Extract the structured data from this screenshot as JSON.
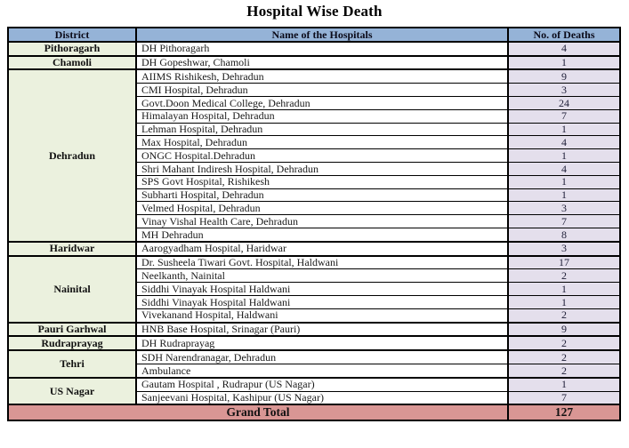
{
  "title": "Hospital Wise Death",
  "colors": {
    "header_bg": "#95B3D7",
    "district_bg": "#EBF1DE",
    "deaths_bg": "#E4DFEC",
    "total_bg": "#D99694",
    "border": "#000000"
  },
  "table": {
    "columns": [
      "District",
      "Name of the Hospitals",
      "No. of Deaths"
    ],
    "districts": [
      {
        "district": "Pithoragarh",
        "hospitals": [
          {
            "name": "DH Pithoragarh",
            "deaths": "4"
          }
        ]
      },
      {
        "district": "Chamoli",
        "hospitals": [
          {
            "name": "DH Gopeshwar, Chamoli",
            "deaths": "1"
          }
        ]
      },
      {
        "district": "Dehradun",
        "hospitals": [
          {
            "name": "AIIMS Rishikesh, Dehradun",
            "deaths": "9"
          },
          {
            "name": "CMI Hospital, Dehradun",
            "deaths": "3"
          },
          {
            "name": "Govt.Doon Medical College, Dehradun",
            "deaths": "24"
          },
          {
            "name": "Himalayan Hospital, Dehradun",
            "deaths": "7"
          },
          {
            "name": "Lehman Hospital, Dehradun",
            "deaths": "1"
          },
          {
            "name": "Max Hospital, Dehradun",
            "deaths": "4"
          },
          {
            "name": "ONGC Hospital.Dehradun",
            "deaths": "1"
          },
          {
            "name": "Shri Mahant Indiresh Hospital, Dehradun",
            "deaths": "4"
          },
          {
            "name": "SPS Govt Hospital, Rishikesh",
            "deaths": "1"
          },
          {
            "name": "Subharti Hospital, Dehradun",
            "deaths": "1"
          },
          {
            "name": "Velmed Hospital, Dehradun",
            "deaths": "3"
          },
          {
            "name": "Vinay Vishal Health Care, Dehradun",
            "deaths": "7"
          },
          {
            "name": "MH Dehradun",
            "deaths": "8"
          }
        ]
      },
      {
        "district": "Haridwar",
        "hospitals": [
          {
            "name": "Aarogyadham Hospital, Haridwar",
            "deaths": "3"
          }
        ]
      },
      {
        "district": "Nainital",
        "hospitals": [
          {
            "name": "Dr. Susheela Tiwari Govt. Hospital, Haldwani",
            "deaths": "17"
          },
          {
            "name": "Neelkanth, Nainital",
            "deaths": "2"
          },
          {
            "name": "Siddhi Vinayak  Hospital Haldwani",
            "deaths": "1"
          },
          {
            "name": "Siddhi Vinayak Hospital Haldwani",
            "deaths": "1"
          },
          {
            "name": "Vivekanand Hospital, Haldwani",
            "deaths": "2"
          }
        ]
      },
      {
        "district": "Pauri Garhwal",
        "hospitals": [
          {
            "name": "HNB Base Hospital, Srinagar (Pauri)",
            "deaths": "9"
          }
        ]
      },
      {
        "district": "Rudraprayag",
        "hospitals": [
          {
            "name": "DH Rudraprayag",
            "deaths": "2"
          }
        ]
      },
      {
        "district": "Tehri",
        "hospitals": [
          {
            "name": "SDH Narendranagar, Dehradun",
            "deaths": "2"
          },
          {
            "name": "Ambulance",
            "deaths": "2"
          }
        ]
      },
      {
        "district": "US Nagar",
        "hospitals": [
          {
            "name": "Gautam Hospital , Rudrapur (US Nagar)",
            "deaths": "1"
          },
          {
            "name": "Sanjeevani Hospital, Kashipur (US Nagar)",
            "deaths": "7"
          }
        ]
      }
    ],
    "grand_total": {
      "label": "Grand Total",
      "value": "127"
    }
  }
}
